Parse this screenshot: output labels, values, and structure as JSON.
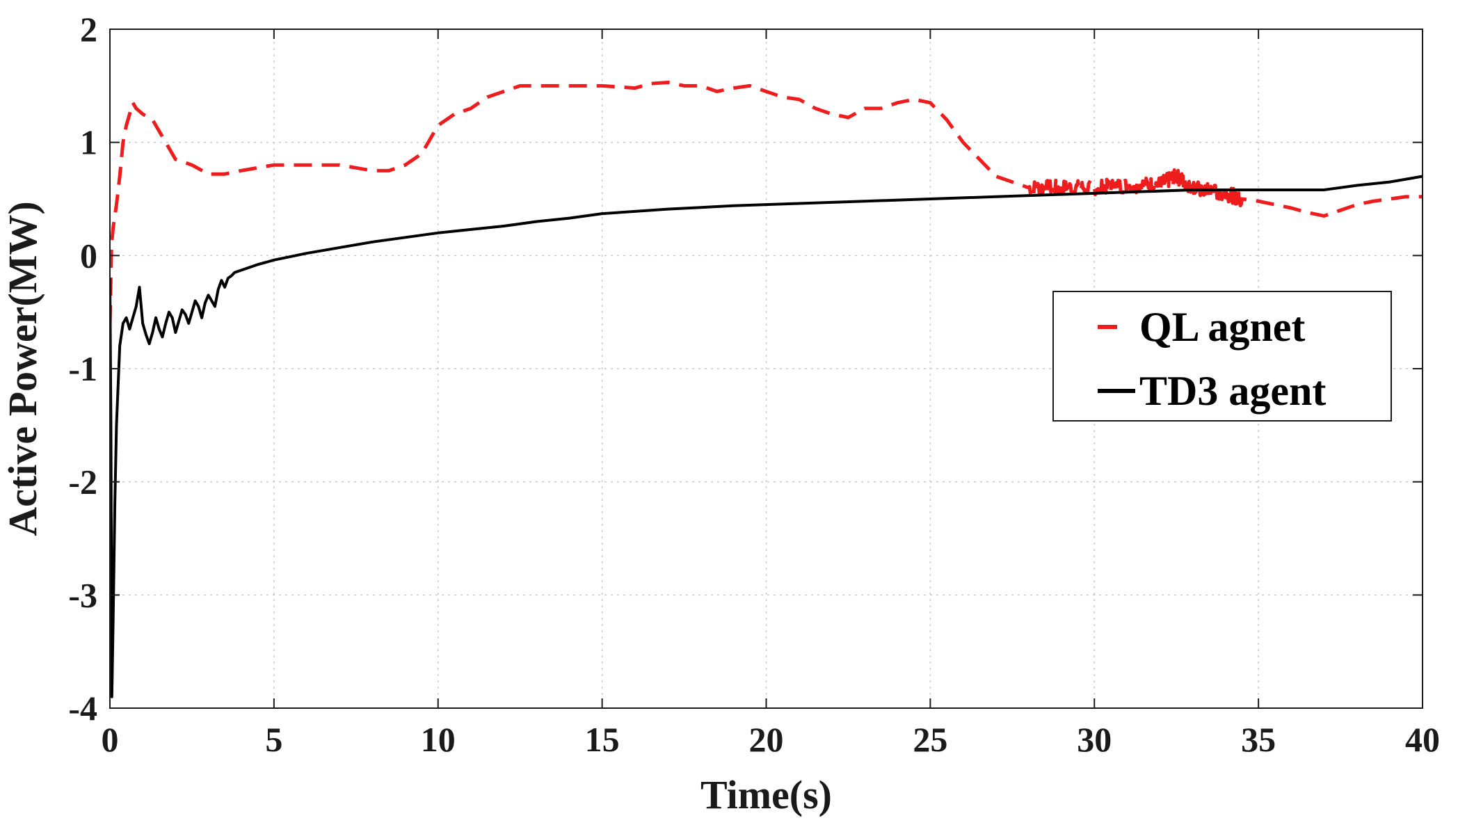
{
  "chart_data": {
    "type": "line",
    "title": "",
    "xlabel": "Time(s)",
    "ylabel": "Active Power(MW)",
    "xlim": [
      0,
      40
    ],
    "ylim": [
      -4,
      2
    ],
    "xticks": [
      0,
      5,
      10,
      15,
      20,
      25,
      30,
      35,
      40
    ],
    "yticks": [
      -4,
      -3,
      -2,
      -1,
      0,
      1,
      2
    ],
    "grid": true,
    "legend_position": "right",
    "series": [
      {
        "name": "QL agnet",
        "color": "#ee1c1c",
        "style": "dashed",
        "noise": 0.03,
        "noise_range": [
          27.8,
          34.5
        ],
        "x": [
          0,
          0.05,
          0.1,
          0.2,
          0.3,
          0.4,
          0.5,
          0.6,
          0.7,
          0.8,
          1.0,
          1.3,
          1.6,
          2.0,
          2.5,
          3.0,
          3.5,
          4.0,
          5.0,
          6.0,
          7.0,
          8.0,
          8.5,
          9.0,
          9.5,
          10.0,
          10.5,
          11.0,
          11.5,
          12.0,
          12.5,
          13.0,
          14.0,
          15.0,
          16.0,
          16.5,
          17.0,
          17.5,
          18.0,
          18.5,
          19.0,
          19.5,
          20.0,
          20.5,
          21.0,
          21.5,
          22.0,
          22.5,
          23.0,
          23.5,
          24.0,
          24.5,
          25.0,
          25.5,
          26.0,
          26.5,
          27.0,
          27.5,
          28.0,
          29.0,
          30.0,
          31.0,
          32.0,
          32.5,
          33.0,
          33.5,
          34.0,
          34.5,
          35.0,
          35.5,
          36.0,
          36.5,
          37.0,
          37.5,
          38.0,
          38.5,
          39.0,
          39.5,
          40.0
        ],
        "y": [
          -0.6,
          0.1,
          0.25,
          0.45,
          0.7,
          1.0,
          1.15,
          1.25,
          1.35,
          1.3,
          1.25,
          1.2,
          1.05,
          0.85,
          0.8,
          0.72,
          0.72,
          0.75,
          0.8,
          0.8,
          0.8,
          0.75,
          0.75,
          0.8,
          0.9,
          1.15,
          1.25,
          1.3,
          1.4,
          1.45,
          1.5,
          1.5,
          1.5,
          1.5,
          1.48,
          1.52,
          1.53,
          1.5,
          1.5,
          1.45,
          1.48,
          1.5,
          1.45,
          1.4,
          1.38,
          1.3,
          1.25,
          1.22,
          1.3,
          1.3,
          1.35,
          1.38,
          1.35,
          1.2,
          1.0,
          0.85,
          0.7,
          0.65,
          0.6,
          0.6,
          0.6,
          0.62,
          0.63,
          0.7,
          0.6,
          0.57,
          0.55,
          0.5,
          0.48,
          0.45,
          0.42,
          0.38,
          0.35,
          0.4,
          0.45,
          0.48,
          0.5,
          0.52,
          0.52
        ]
      },
      {
        "name": "TD3 agent",
        "color": "#000000",
        "style": "solid",
        "noise": 0,
        "noise_range": [
          0,
          0
        ],
        "x": [
          0,
          0.03,
          0.06,
          0.1,
          0.15,
          0.2,
          0.3,
          0.4,
          0.5,
          0.6,
          0.7,
          0.8,
          0.9,
          1.0,
          1.1,
          1.2,
          1.3,
          1.4,
          1.5,
          1.6,
          1.7,
          1.8,
          1.9,
          2.0,
          2.1,
          2.2,
          2.3,
          2.4,
          2.5,
          2.6,
          2.7,
          2.8,
          2.9,
          3.0,
          3.1,
          3.2,
          3.3,
          3.4,
          3.5,
          3.6,
          3.7,
          3.8,
          4.0,
          4.5,
          5.0,
          6.0,
          7.0,
          8.0,
          9.0,
          10.0,
          11.0,
          12.0,
          13.0,
          14.0,
          15.0,
          17.0,
          19.0,
          21.0,
          23.0,
          25.0,
          27.0,
          29.0,
          31.0,
          33.0,
          35.0,
          37.0,
          38.0,
          39.0,
          40.0
        ],
        "y": [
          -0.2,
          -1.5,
          -3.9,
          -3.2,
          -2.2,
          -1.5,
          -0.8,
          -0.6,
          -0.55,
          -0.65,
          -0.55,
          -0.45,
          -0.28,
          -0.6,
          -0.7,
          -0.78,
          -0.68,
          -0.55,
          -0.65,
          -0.72,
          -0.6,
          -0.5,
          -0.55,
          -0.68,
          -0.58,
          -0.48,
          -0.52,
          -0.6,
          -0.5,
          -0.4,
          -0.45,
          -0.55,
          -0.42,
          -0.35,
          -0.4,
          -0.45,
          -0.3,
          -0.22,
          -0.28,
          -0.2,
          -0.18,
          -0.15,
          -0.13,
          -0.08,
          -0.04,
          0.02,
          0.07,
          0.12,
          0.16,
          0.2,
          0.23,
          0.26,
          0.3,
          0.33,
          0.37,
          0.41,
          0.44,
          0.46,
          0.48,
          0.5,
          0.52,
          0.54,
          0.56,
          0.58,
          0.58,
          0.58,
          0.62,
          0.65,
          0.7
        ]
      }
    ]
  }
}
